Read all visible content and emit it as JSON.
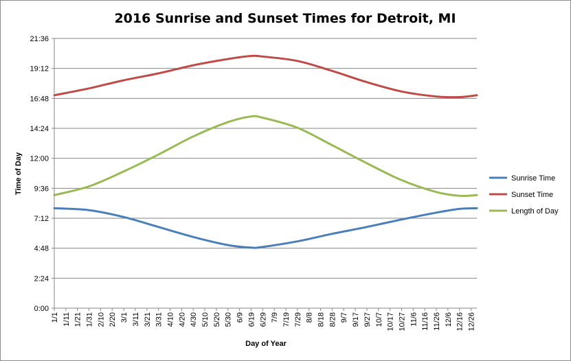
{
  "chart_data": {
    "type": "line",
    "title": "2016 Sunrise and Sunset Times for Detroit, MI",
    "xlabel": "Day of Year",
    "ylabel": "Time of Day",
    "y_ticks": [
      "0:00",
      "2:24",
      "4:48",
      "7:12",
      "9:36",
      "12:00",
      "14:24",
      "16:48",
      "19:12",
      "21:36"
    ],
    "ylim": [
      0,
      21.6
    ],
    "x_tick_labels": [
      "1/1",
      "1/11",
      "1/21",
      "1/31",
      "2/10",
      "2/20",
      "3/1",
      "3/11",
      "3/21",
      "3/31",
      "4/10",
      "4/20",
      "4/30",
      "5/10",
      "5/20",
      "5/30",
      "6/9",
      "6/19",
      "6/29",
      "7/9",
      "7/19",
      "7/29",
      "8/8",
      "8/18",
      "8/28",
      "9/7",
      "9/17",
      "9/27",
      "10/7",
      "10/17",
      "10/27",
      "11/6",
      "11/16",
      "11/26",
      "12/6",
      "12/16",
      "12/26"
    ],
    "x_days": [
      "1/1",
      "1/31",
      "3/1",
      "3/31",
      "4/30",
      "5/30",
      "6/19",
      "6/29",
      "7/29",
      "8/28",
      "9/27",
      "10/27",
      "11/26",
      "12/16",
      "12/31"
    ],
    "grid": true,
    "legend_position": "right",
    "series": [
      {
        "name": "Sunrise Time",
        "color": "#4a7ebb",
        "values": [
          8.0,
          7.85,
          7.3,
          6.5,
          5.7,
          5.05,
          4.85,
          4.9,
          5.35,
          5.95,
          6.5,
          7.1,
          7.65,
          7.95,
          8.0
        ]
      },
      {
        "name": "Sunset Time",
        "color": "#be4b48",
        "values": [
          17.05,
          17.6,
          18.25,
          18.8,
          19.45,
          19.95,
          20.2,
          20.15,
          19.8,
          19.0,
          18.1,
          17.35,
          16.95,
          16.9,
          17.05
        ]
      },
      {
        "name": "Length of Day",
        "color": "#98b954",
        "values": [
          9.05,
          9.75,
          10.95,
          12.3,
          13.75,
          14.9,
          15.35,
          15.25,
          14.45,
          13.05,
          11.6,
          10.25,
          9.3,
          9.0,
          9.05
        ]
      }
    ]
  }
}
